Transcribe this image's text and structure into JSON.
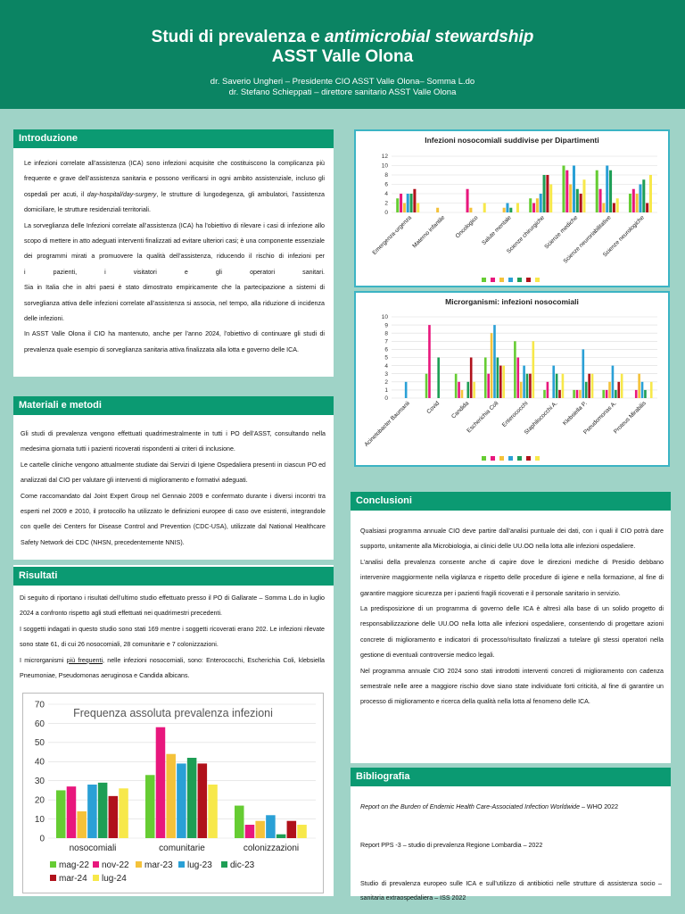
{
  "header": {
    "title_part1": "Studi di prevalenza e ",
    "title_italic": "antimicrobial stewardship",
    "title_line2": "ASST Valle Olona",
    "author1": "dr. Saverio Ungheri – Presidente CIO ASST Valle Olona– Somma L.do",
    "author2": "dr. Stefano Schieppati – direttore sanitario ASST Valle Olona"
  },
  "intro": {
    "title": "Introduzione",
    "p1_a": "Le infezioni correlate all’assistenza (ICA) sono infezioni acquisite che costituiscono la complicanza più frequente e grave dell’assistenza sanitaria e possono verificarsi in ogni ambito assistenziale, incluso gli ospedali per acuti, il ",
    "p1_italic": "day-hospital/day-surgery",
    "p1_b": ", le strutture di lungodegenza, gli ambulatori, l’assistenza domiciliare, le strutture residenziali territoriali.",
    "p2_a": "La sorveglianza delle Infezioni correlate all’assistenza (ICA) ha l’obiettivo di rilevare i casi di infezione allo scopo di mettere in atto adeguati interventi finalizzati ad evitare ulteriori casi; è una componente essenziale dei programmi mirati a promuovere la qualità dell’assistenza, riducendo il rischio di infezioni per",
    "p2_b": "i pazienti, i visitatori e gli operatori sanitari.",
    "p3": "Sia in Italia che in altri paesi è stato dimostrato empiricamente che la partecipazione a sistemi di sorveglianza attiva delle infezioni correlate all’assistenza si associa, nel tempo, alla riduzione di incidenza delle infezioni.",
    "p4": "In ASST Valle Olona il CIO ha mantenuto, anche per l’anno 2024, l’obiettivo di continuare gli studi di prevalenza quale esempio di sorveglianza sanitaria attiva finalizzata alla lotta e governo delle ICA."
  },
  "methods": {
    "title": "Materiali e metodi",
    "p1": "Gli studi di prevalenza vengono effettuati quadrimestralmente in tutti i PO dell’ASST, consultando nella medesima giornata tutti i pazienti ricoverati rispondenti ai criteri di inclusione.",
    "p2": "Le cartelle cliniche vengono attualmente studiate dai Servizi di Igiene Ospedaliera presenti in ciascun PO ed analizzati dal CIO per valutare gli interventi di miglioramento e formativi adeguati.",
    "p3": "Come raccomandato dal Joint Expert Group nel Gennaio 2009 e confermato durante i diversi incontri tra esperti nel 2009 e 2010, il protocollo ha utilizzato le definizioni europee di caso ove esistenti, integrandole con quelle dei Centers for Disease Control and Prevention (CDC-USA), utilizzate dal National Healthcare Safety Network dei CDC (NHSN, precedentemente NNIS)."
  },
  "results": {
    "title": "Risultati",
    "p1": "Di seguito di riportano i risultati dell’ultimo studio effettuato presso il  PO di Gallarate – Somma L.do in luglio 2024 a confronto rispetto agli studi effettuati nei quadrimestri precedenti.",
    "p2": "I soggetti indagati in questo studio sono stati 169 mentre i soggetti ricoverati erano 202. Le infezioni rilevate sono state 61, di cui 26 nosocomiali, 28 comunitarie e 7 colonizzazioni.",
    "p3_a": "I microrganismi ",
    "p3_u": "più frequenti",
    "p3_b": ", nelle infezioni nosocomiali, sono: Enterococchi, Escherichia Coli, klebsiella Pneumoniae,  Pseudomonas aeruginosa e Candida albicans."
  },
  "conclusions": {
    "title": "Conclusioni",
    "p1": "Qualsiasi programma annuale CIO deve partire dall’analisi puntuale dei dati, con i quali il CIO potrà dare supporto, unitamente alla Microbiologia, ai clinici delle UU.OO nella lotta alle infezioni ospedaliere.",
    "p2": "L’analisi della prevalenza consente anche di capire dove le direzioni mediche di Presidio debbano intervenire maggiormente nella vigilanza e rispetto delle procedure di igiene e nella formazione, al fine di garantire maggiore sicurezza per i pazienti fragili ricoverati e il personale sanitario in servizio.",
    "p3": "La predisposizione di un programma di governo delle ICA  è altresì alla base di un solido progetto di responsabilizzazione delle UU.OO nella lotta alle infezioni ospedaliere, consentendo di progettare azioni concrete di miglioramento e indicatori di processo/risultato finalizzati a tutelare gli stessi operatori nella gestione di eventuali controversie medico legali.",
    "p4": "Nel programma annuale CIO 2024 sono stati introdotti interventi concreti di miglioramento con cadenza semestrale nelle aree a maggiore rischio dove siano state individuate forti criticità, al fine di garantire un processo di miglioramento e ricerca della qualità nella lotta al fenomeno delle ICA."
  },
  "bibliography": {
    "title": "Bibliografia",
    "r1_italic": "Report on the Burden of Endemic Health Care-Associated Infection Worldwide",
    "r1_rest": " – WHO 2022",
    "r2": "Report PPS -3 – studio di prevalenza Regione Lombardia – 2022",
    "r3": "Studio di prevalenza europeo sulle ICA e sull’utilizzo di antibiotici nelle strutture di assistenza socio – sanitaria extraospedaliera – ISS 2022"
  },
  "colors": [
    "#66cc33",
    "#e8177d",
    "#f4c23a",
    "#2aa0d6",
    "#1e9e55",
    "#b0111b",
    "#6e3ea0",
    "#f7e84a"
  ],
  "chart_data": [
    {
      "type": "bar",
      "title": "Frequenza assoluta prevalenza infezioni",
      "categories": [
        "nosocomiali",
        "comunitarie",
        "colonizzazioni"
      ],
      "ylim": [
        0,
        70
      ],
      "yticks": [
        0,
        10,
        20,
        30,
        40,
        50,
        60,
        70
      ],
      "legend": "bottom",
      "series": [
        {
          "name": "mag-22",
          "color": "#66cc33",
          "values": [
            25,
            33,
            17
          ]
        },
        {
          "name": "nov-22",
          "color": "#e8177d",
          "values": [
            27,
            58,
            7
          ]
        },
        {
          "name": "mar-23",
          "color": "#f4c23a",
          "values": [
            14,
            44,
            9
          ]
        },
        {
          "name": "lug-23",
          "color": "#2aa0d6",
          "values": [
            28,
            39,
            12
          ]
        },
        {
          "name": "dic-23",
          "color": "#1e9e55",
          "values": [
            29,
            42,
            2
          ]
        },
        {
          "name": "mar-24",
          "color": "#b0111b",
          "values": [
            22,
            39,
            9
          ]
        },
        {
          "name": "lug-24",
          "color": "#f7e84a",
          "values": [
            26,
            28,
            7
          ]
        }
      ]
    },
    {
      "type": "bar",
      "title": "Infezioni nosocomiali suddivise per Dipartimenti",
      "categories": [
        "Emergenza-urgenza",
        "Materno infantile",
        "Oncologico",
        "Salute mentale",
        "Scienze chirurgiche",
        "Scienze mediche",
        "Scienze neuroriabilitative",
        "Scienze neurologiche"
      ],
      "ylim": [
        0,
        12
      ],
      "yticks": [
        0,
        2,
        4,
        6,
        8,
        10,
        12
      ],
      "legend": "bottom",
      "series": [
        {
          "color": "#66cc33",
          "values": [
            3,
            0,
            0,
            0,
            3,
            10,
            9,
            4
          ]
        },
        {
          "color": "#e8177d",
          "values": [
            4,
            0,
            5,
            0,
            2,
            9,
            5,
            5
          ]
        },
        {
          "color": "#f4c23a",
          "values": [
            2,
            1,
            1,
            1,
            3,
            6,
            2,
            4
          ]
        },
        {
          "color": "#2aa0d6",
          "values": [
            4,
            0,
            0,
            2,
            4,
            10,
            10,
            6
          ]
        },
        {
          "color": "#1e9e55",
          "values": [
            4,
            0,
            0,
            1,
            8,
            5,
            9,
            7
          ]
        },
        {
          "color": "#b0111b",
          "values": [
            5,
            0,
            0,
            0,
            8,
            4,
            2,
            2
          ]
        },
        {
          "color": "#f7e84a",
          "values": [
            2,
            0,
            2,
            2,
            6,
            7,
            3,
            8
          ]
        }
      ]
    },
    {
      "type": "bar",
      "title": "Microrganismi: infezioni nosocomiali",
      "categories": [
        "Acinetobacter Baumanii",
        "Covid",
        "Candida",
        "Escherichia Coli",
        "Enterococchi",
        "Staphilococchi A.",
        "Klebsiella P.",
        "Pseudomonas A.",
        "Proteus Mirabilis"
      ],
      "ylim": [
        0,
        10
      ],
      "yticks": [
        0,
        1,
        2,
        3,
        4,
        5,
        6,
        7,
        8,
        9,
        10
      ],
      "legend": "bottom",
      "series": [
        {
          "color": "#66cc33",
          "values": [
            0,
            3,
            3,
            5,
            7,
            1,
            1,
            1,
            0
          ]
        },
        {
          "color": "#e8177d",
          "values": [
            0,
            9,
            2,
            3,
            5,
            2,
            1,
            1,
            1
          ]
        },
        {
          "color": "#f4c23a",
          "values": [
            0,
            0,
            1,
            8,
            2,
            0,
            1,
            2,
            3
          ]
        },
        {
          "color": "#2aa0d6",
          "values": [
            2,
            0,
            0,
            9,
            4,
            4,
            6,
            4,
            2
          ]
        },
        {
          "color": "#1e9e55",
          "values": [
            0,
            5,
            2,
            5,
            3,
            3,
            2,
            1,
            1
          ]
        },
        {
          "color": "#b0111b",
          "values": [
            0,
            0,
            5,
            4,
            3,
            1,
            3,
            2,
            0
          ]
        },
        {
          "color": "#f7e84a",
          "values": [
            0,
            0,
            2,
            4,
            7,
            3,
            3,
            3,
            2
          ]
        }
      ]
    }
  ]
}
